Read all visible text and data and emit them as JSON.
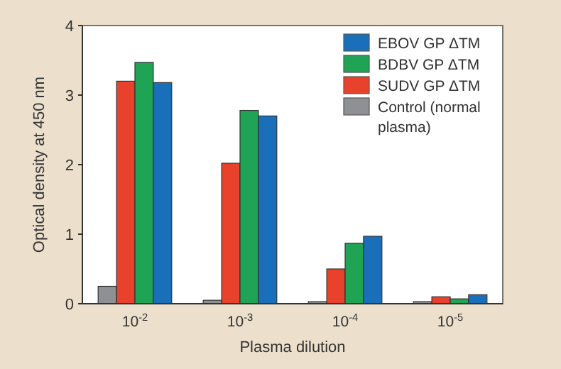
{
  "chart_data": {
    "type": "bar",
    "xlabel": "Plasma dilution",
    "ylabel": "Optical density at 450 nm",
    "categories": [
      "10$^{-2}$",
      "10$^{-3}$",
      "10$^{-4}$",
      "10$^{-5}$"
    ],
    "series": [
      {
        "name": "Control (normal plasma)",
        "color": "#8e9093",
        "values": [
          0.25,
          0.05,
          0.03,
          0.03
        ]
      },
      {
        "name": "SUDV GP ΔTM",
        "color": "#e8412c",
        "values": [
          3.2,
          2.02,
          0.5,
          0.1
        ]
      },
      {
        "name": "BDBV GP ΔTM",
        "color": "#1fa354",
        "values": [
          3.47,
          2.78,
          0.87,
          0.07
        ]
      },
      {
        "name": "EBOV GP ΔTM",
        "color": "#1a6fba",
        "values": [
          3.18,
          2.7,
          0.97,
          0.13
        ]
      }
    ],
    "ylim": [
      0,
      4
    ],
    "yticks": [
      0,
      1,
      2,
      3,
      4
    ],
    "grid": false,
    "legend": "top right"
  }
}
